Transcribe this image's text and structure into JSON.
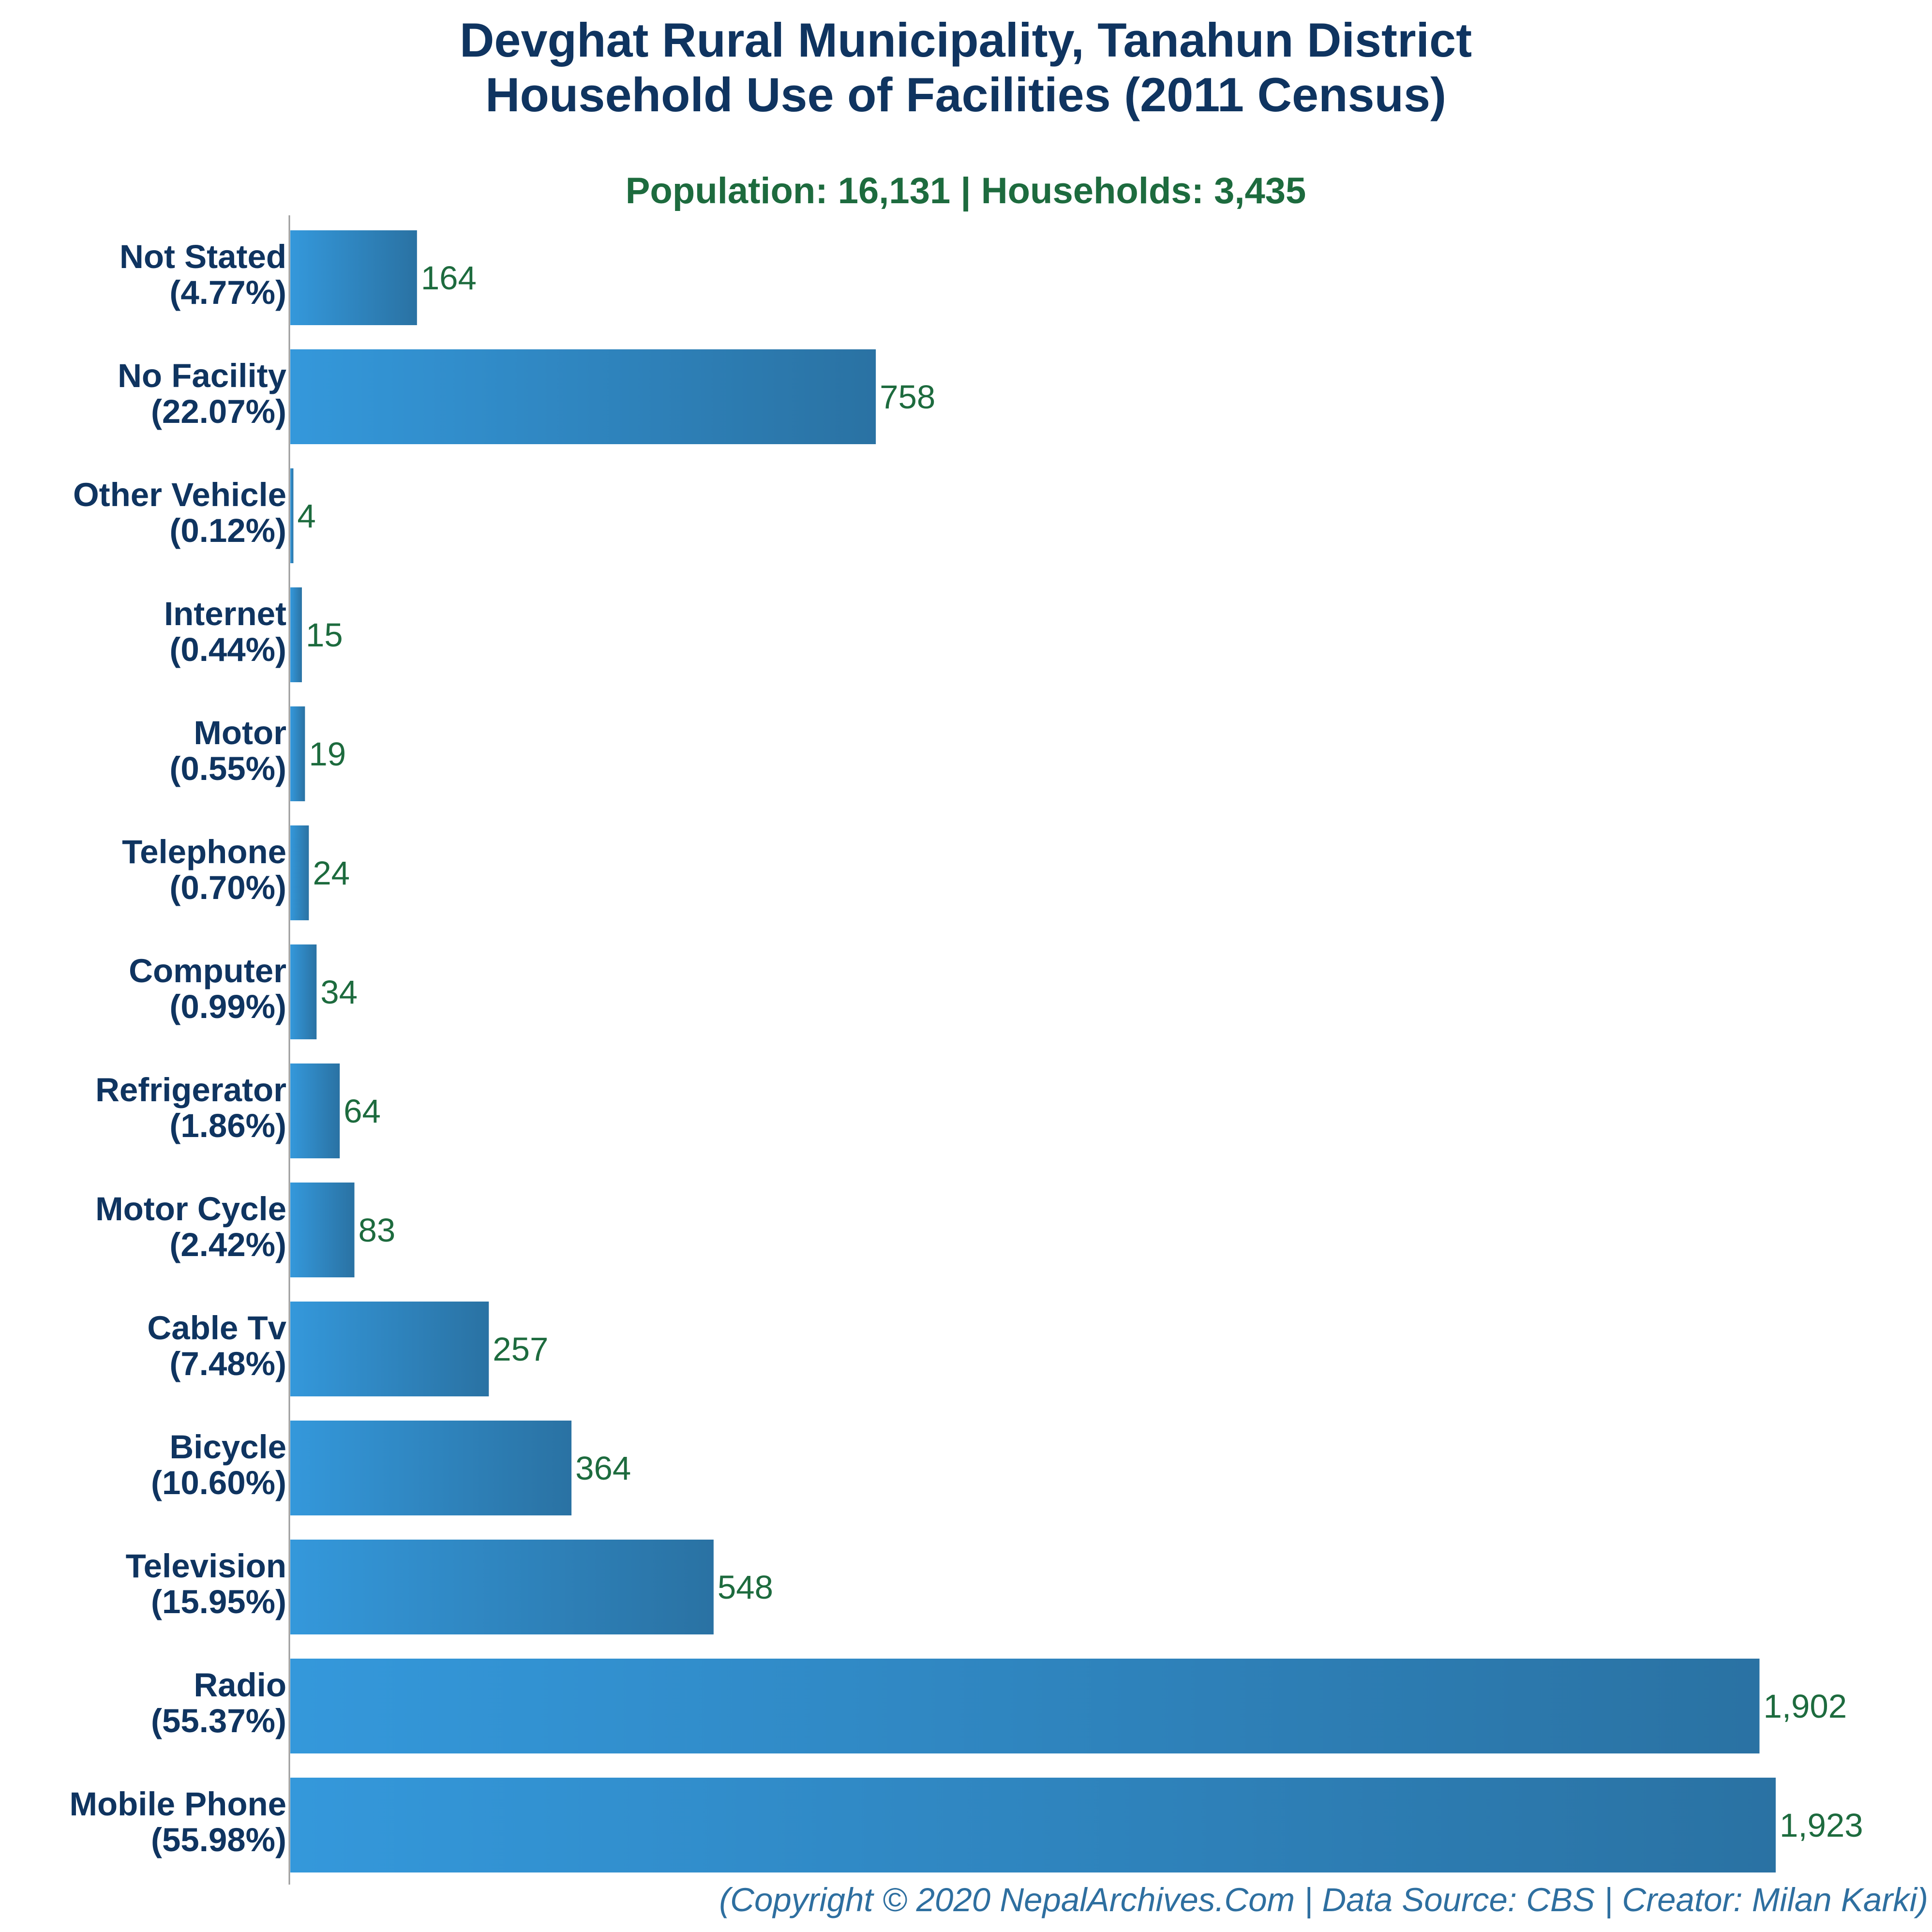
{
  "chart_data": {
    "type": "bar",
    "orientation": "horizontal",
    "title_lines": [
      "Devghat Rural Municipality, Tanahun District",
      "Household Use of Facilities (2011 Census)"
    ],
    "subtitle": "Population: 16,131 | Households: 3,435",
    "categories": [
      {
        "name": "Not Stated",
        "pct": "(4.77%)"
      },
      {
        "name": "No Facility",
        "pct": "(22.07%)"
      },
      {
        "name": "Other Vehicle",
        "pct": "(0.12%)"
      },
      {
        "name": "Internet",
        "pct": "(0.44%)"
      },
      {
        "name": "Motor",
        "pct": "(0.55%)"
      },
      {
        "name": "Telephone",
        "pct": "(0.70%)"
      },
      {
        "name": "Computer",
        "pct": "(0.99%)"
      },
      {
        "name": "Refrigerator",
        "pct": "(1.86%)"
      },
      {
        "name": "Motor Cycle",
        "pct": "(2.42%)"
      },
      {
        "name": "Cable Tv",
        "pct": "(7.48%)"
      },
      {
        "name": "Bicycle",
        "pct": "(10.60%)"
      },
      {
        "name": "Television",
        "pct": "(15.95%)"
      },
      {
        "name": "Radio",
        "pct": "(55.37%)"
      },
      {
        "name": "Mobile Phone",
        "pct": "(55.98%)"
      }
    ],
    "values": [
      164,
      758,
      4,
      15,
      19,
      24,
      34,
      64,
      83,
      257,
      364,
      548,
      1902,
      1923
    ],
    "value_labels": [
      "164",
      "758",
      "4",
      "15",
      "19",
      "24",
      "34",
      "64",
      "83",
      "257",
      "364",
      "548",
      "1,902",
      "1,923"
    ],
    "xlim": [
      0,
      1923
    ],
    "grid": false,
    "legend": "none",
    "colors": {
      "bar_light": "#3498db",
      "bar_dark": "#2a72a3",
      "title": "#0f3460",
      "subtitle": "#1d6b3e",
      "footer": "#2e6fa0"
    }
  },
  "footer": "(Copyright © 2020 NepalArchives.Com | Data Source: CBS | Creator: Milan Karki)"
}
